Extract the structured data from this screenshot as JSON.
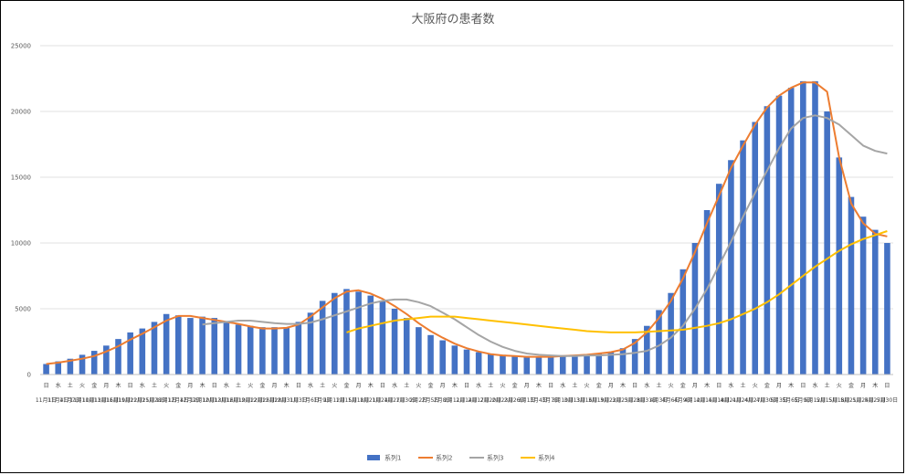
{
  "chart_data": {
    "type": "bar",
    "title": "大阪府の患者数",
    "xlabel": "",
    "ylabel": "",
    "ylim": [
      0,
      25000
    ],
    "yticks": [
      0,
      5000,
      10000,
      15000,
      20000,
      25000
    ],
    "grid": true,
    "legend_position": "bottom",
    "categories": [
      "11月1日",
      "11月4日",
      "11月7日",
      "11月10日",
      "11月13日",
      "11月16日",
      "11月19日",
      "11月22日",
      "11月25日",
      "11月28日",
      "12月1日",
      "12月4日",
      "12月7日",
      "12月10日",
      "12月13日",
      "12月16日",
      "12月19日",
      "12月22日",
      "12月25日",
      "12月28日",
      "12月31日",
      "1月3日",
      "1月6日",
      "1月9日",
      "1月12日",
      "1月15日",
      "1月18日",
      "1月21日",
      "1月24日",
      "1月27日",
      "1月30日",
      "2月2日",
      "2月5日",
      "2月8日",
      "2月11日",
      "2月14日",
      "2月17日",
      "2月20日",
      "2月23日",
      "2月26日",
      "3月1日",
      "3月4日",
      "3月7日",
      "3月10日",
      "3月13日",
      "3月16日",
      "3月19日",
      "3月22日",
      "3月25日",
      "3月28日",
      "3月31日",
      "4月3日",
      "4月6日",
      "4月9日",
      "4月12日",
      "4月15日",
      "4月18日",
      "4月21日",
      "4月24日",
      "4月27日",
      "4月30日",
      "5月3日",
      "5月6日",
      "5月9日",
      "5月12日",
      "5月15日",
      "5月18日",
      "5月21日",
      "5月24日",
      "5月27日",
      "5月30日"
    ],
    "weekdays": [
      "日",
      "水",
      "土",
      "火",
      "金",
      "月",
      "木",
      "日",
      "水",
      "土",
      "火",
      "金",
      "月",
      "木",
      "日",
      "水",
      "土",
      "火",
      "金",
      "月",
      "木",
      "日",
      "水",
      "土",
      "火",
      "金",
      "月",
      "木",
      "日",
      "水",
      "土",
      "火",
      "金",
      "月",
      "木",
      "日",
      "水",
      "土",
      "火",
      "金",
      "月",
      "木",
      "日",
      "水",
      "土",
      "火",
      "金",
      "月",
      "木",
      "日",
      "水",
      "土",
      "火",
      "金",
      "月",
      "木",
      "日",
      "水",
      "土",
      "火",
      "金",
      "月",
      "木",
      "日",
      "水",
      "土",
      "火",
      "金",
      "月",
      "木",
      "日"
    ],
    "series": [
      {
        "name": "系列1",
        "color": "#4472C4",
        "values": [
          800,
          1000,
          1200,
          1500,
          1800,
          2200,
          2700,
          3200,
          3500,
          4000,
          4600,
          4500,
          4300,
          4400,
          4300,
          4000,
          3800,
          3700,
          3600,
          3600,
          3600,
          4000,
          4700,
          5600,
          6200,
          6500,
          6300,
          6000,
          5600,
          5000,
          4300,
          3600,
          3000,
          2600,
          2200,
          1900,
          1700,
          1600,
          1500,
          1450,
          1400,
          1350,
          1350,
          1400,
          1450,
          1500,
          1600,
          1700,
          2000,
          2700,
          3700,
          4900,
          6200,
          8000,
          10000,
          12500,
          14500,
          16300,
          17800,
          19200,
          20400,
          21200,
          21800,
          22300,
          22300,
          20000,
          16500,
          13500,
          12000,
          11000,
          10000
        ]
      },
      {
        "name": "系列2",
        "color": "#ED7D31",
        "values": [
          800,
          900,
          1050,
          1200,
          1400,
          1750,
          2150,
          2650,
          3100,
          3600,
          4100,
          4450,
          4450,
          4300,
          4150,
          4000,
          3850,
          3650,
          3500,
          3500,
          3550,
          3800,
          4400,
          5100,
          5800,
          6300,
          6400,
          6150,
          5750,
          5200,
          4600,
          3900,
          3300,
          2800,
          2350,
          2000,
          1750,
          1550,
          1450,
          1400,
          1350,
          1350,
          1350,
          1400,
          1450,
          1500,
          1600,
          1700,
          1900,
          2400,
          3200,
          4300,
          5600,
          7300,
          9300,
          11500,
          13600,
          15700,
          17400,
          19000,
          20300,
          21200,
          21800,
          22200,
          22200,
          21500,
          16500,
          13000,
          11500,
          10700,
          10500
        ]
      },
      {
        "name": "系列3",
        "color": "#A5A5A5",
        "values": [
          null,
          null,
          null,
          null,
          null,
          null,
          null,
          null,
          null,
          null,
          null,
          null,
          null,
          3800,
          3900,
          4000,
          4100,
          4100,
          4000,
          3900,
          3850,
          3850,
          3950,
          4200,
          4500,
          4800,
          5100,
          5400,
          5600,
          5700,
          5700,
          5500,
          5200,
          4700,
          4200,
          3600,
          3000,
          2500,
          2100,
          1800,
          1600,
          1500,
          1450,
          1400,
          1400,
          1450,
          1450,
          1500,
          1550,
          1650,
          1800,
          2200,
          2800,
          3700,
          5000,
          6500,
          8300,
          10100,
          12000,
          13800,
          15500,
          17200,
          18700,
          19500,
          19700,
          19500,
          19000,
          18200,
          17400,
          17000,
          16800
        ]
      },
      {
        "name": "系列4",
        "color": "#FFC000",
        "values": [
          null,
          null,
          null,
          null,
          null,
          null,
          null,
          null,
          null,
          null,
          null,
          null,
          null,
          null,
          null,
          null,
          null,
          null,
          null,
          null,
          null,
          null,
          null,
          null,
          null,
          3200,
          3500,
          3700,
          3900,
          4100,
          4200,
          4300,
          4400,
          4400,
          4400,
          4300,
          4200,
          4100,
          4000,
          3900,
          3800,
          3700,
          3600,
          3500,
          3400,
          3300,
          3250,
          3200,
          3200,
          3200,
          3250,
          3300,
          3350,
          3400,
          3550,
          3700,
          3900,
          4200,
          4600,
          5000,
          5500,
          6100,
          6800,
          7500,
          8200,
          8800,
          9400,
          9900,
          10300,
          10600,
          10900
        ]
      }
    ]
  }
}
